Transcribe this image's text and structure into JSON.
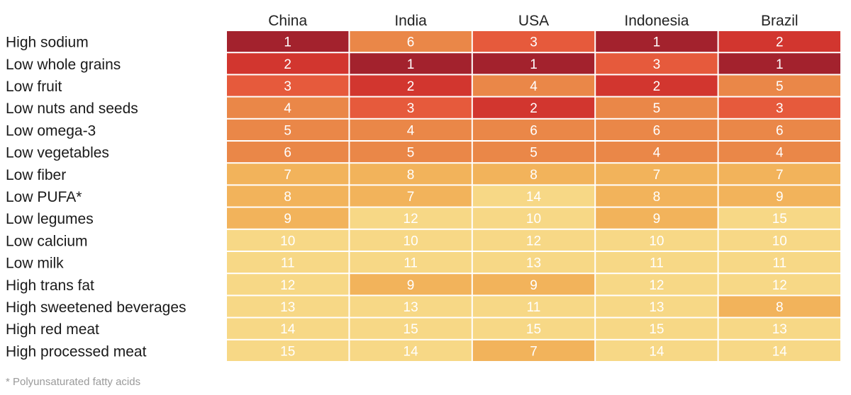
{
  "chart_data": {
    "type": "heatmap",
    "columns": [
      "China",
      "India",
      "USA",
      "Indonesia",
      "Brazil"
    ],
    "rows": [
      "High sodium",
      "Low whole grains",
      "Low fruit",
      "Low nuts and seeds",
      "Low omega-3",
      "Low vegetables",
      "Low fiber",
      "Low PUFA*",
      "Low legumes",
      "Low calcium",
      "Low milk",
      "High trans fat",
      "High sweetened beverages",
      "High red meat",
      "High processed meat"
    ],
    "values": [
      [
        1,
        6,
        3,
        1,
        2
      ],
      [
        2,
        1,
        1,
        3,
        1
      ],
      [
        3,
        2,
        4,
        2,
        5
      ],
      [
        4,
        3,
        2,
        5,
        3
      ],
      [
        5,
        4,
        6,
        6,
        6
      ],
      [
        6,
        5,
        5,
        4,
        4
      ],
      [
        7,
        8,
        8,
        7,
        7
      ],
      [
        8,
        7,
        14,
        8,
        9
      ],
      [
        9,
        12,
        10,
        9,
        15
      ],
      [
        10,
        10,
        12,
        10,
        10
      ],
      [
        11,
        11,
        13,
        11,
        11
      ],
      [
        12,
        9,
        9,
        12,
        12
      ],
      [
        13,
        13,
        11,
        13,
        8
      ],
      [
        14,
        15,
        15,
        15,
        13
      ],
      [
        15,
        14,
        7,
        14,
        14
      ]
    ],
    "color_scale": {
      "1": "#a3222d",
      "2": "#d2362f",
      "3": "#e65a3c",
      "4": "#ea8748",
      "5": "#ea8748",
      "6": "#ea8748",
      "7": "#f2b35b",
      "8": "#f2b35b",
      "9": "#f2b35b",
      "10": "#f7d886",
      "11": "#f7d886",
      "12": "#f7d886",
      "13": "#f7d886",
      "14": "#f7d886",
      "15": "#f7d886"
    },
    "cell_text_color": "#ffffff",
    "footnote": "* Polyunsaturated fatty acids"
  }
}
